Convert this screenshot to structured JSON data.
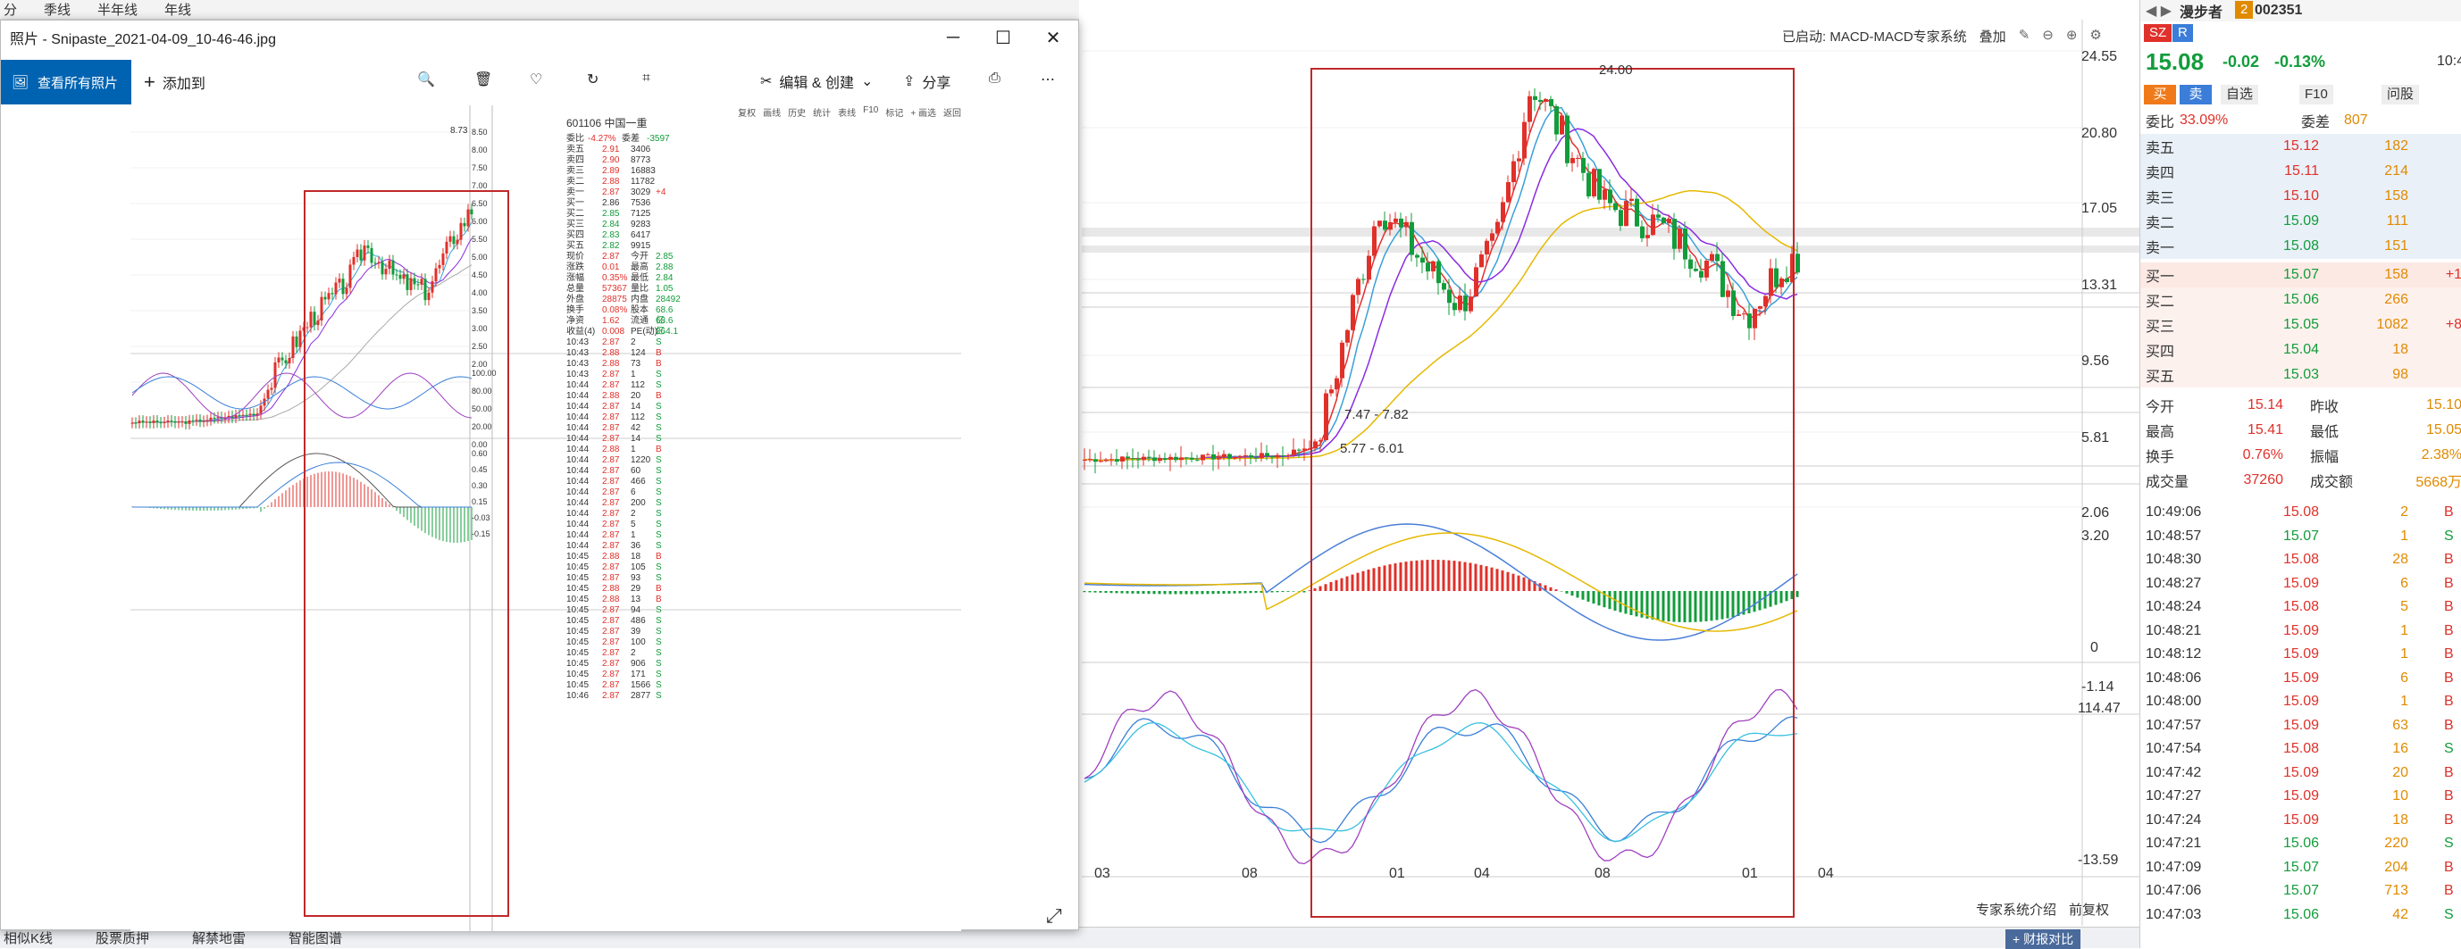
{
  "top_tabs": [
    "分",
    "季线",
    "半年线",
    "年线"
  ],
  "status_tabs": [
    "相似K线",
    "股票质押",
    "解禁地雷",
    "智能图谱"
  ],
  "photos": {
    "title": "照片 - Snipaste_2021-04-09_10-46-46.jpg",
    "see_all": "查看所有照片",
    "add_to": "添加到",
    "edit_create": "编辑 & 创建",
    "share": "分享",
    "win": {
      "minimize": "─",
      "maximize": "☐",
      "close": "✕"
    },
    "embedded": {
      "stock_title": "601106 中国一重",
      "topbar": [
        "复权",
        "画线",
        "历史",
        "统计",
        "表线",
        "F10",
        "标记",
        "+ 画选",
        "返回"
      ],
      "price_axis": [
        "8.50",
        "8.00",
        "7.50",
        "7.00",
        "6.50",
        "6.00",
        "5.50",
        "5.00",
        "4.50",
        "4.00",
        "3.50",
        "3.00",
        "2.50",
        "2.00"
      ],
      "peak_label": "8.73",
      "kdj_axis": [
        "100.00",
        "80.00",
        "50.00",
        "20.00",
        "0.00"
      ],
      "macd_axis": [
        "0.60",
        "0.45",
        "0.30",
        "0.15",
        "-0.03",
        "-0.15"
      ],
      "webi": {
        "label": "委比",
        "val": "-4.27%",
        "label2": "委差",
        "val2": "-3597"
      },
      "sell": [
        [
          "卖五",
          "2.91",
          "3406",
          ""
        ],
        [
          "卖四",
          "2.90",
          "8773",
          ""
        ],
        [
          "卖三",
          "2.89",
          "16883",
          ""
        ],
        [
          "卖二",
          "2.88",
          "11782",
          ""
        ],
        [
          "卖一",
          "2.87",
          "3029",
          "+4"
        ]
      ],
      "buy": [
        [
          "买一",
          "2.86",
          "7536",
          ""
        ],
        [
          "买二",
          "2.85",
          "7125",
          ""
        ],
        [
          "买三",
          "2.84",
          "9283",
          ""
        ],
        [
          "买四",
          "2.83",
          "6417",
          ""
        ],
        [
          "买五",
          "2.82",
          "9915",
          ""
        ]
      ],
      "stats": [
        [
          "现价",
          "2.87",
          "今开",
          "2.85"
        ],
        [
          "涨跌",
          "0.01",
          "最高",
          "2.88"
        ],
        [
          "涨幅",
          "0.35%",
          "最低",
          "2.84"
        ],
        [
          "总量",
          "57367",
          "量比",
          "1.05"
        ],
        [
          "外盘",
          "28875",
          "内盘",
          "28492"
        ],
        [
          "换手",
          "0.08%",
          "股本",
          "68.6亿"
        ],
        [
          "净资",
          "1.62",
          "流通",
          "68.6亿"
        ],
        [
          "收益(4)",
          "0.008",
          "PE(动)",
          "264.1"
        ]
      ],
      "ticks": [
        [
          "10:43",
          "2.87",
          "2",
          "S"
        ],
        [
          "10:43",
          "2.88",
          "124",
          "B"
        ],
        [
          "10:43",
          "2.88",
          "73",
          "B"
        ],
        [
          "10:43",
          "2.87",
          "1",
          "S"
        ],
        [
          "10:44",
          "2.87",
          "112",
          "S"
        ],
        [
          "10:44",
          "2.88",
          "20",
          "B"
        ],
        [
          "10:44",
          "2.87",
          "14",
          "S"
        ],
        [
          "10:44",
          "2.87",
          "112",
          "S"
        ],
        [
          "10:44",
          "2.87",
          "42",
          "S"
        ],
        [
          "10:44",
          "2.87",
          "14",
          "S"
        ],
        [
          "10:44",
          "2.88",
          "1",
          "B"
        ],
        [
          "10:44",
          "2.87",
          "1220",
          "S"
        ],
        [
          "10:44",
          "2.87",
          "60",
          "S"
        ],
        [
          "10:44",
          "2.87",
          "466",
          "S"
        ],
        [
          "10:44",
          "2.87",
          "6",
          "S"
        ],
        [
          "10:44",
          "2.87",
          "200",
          "S"
        ],
        [
          "10:44",
          "2.87",
          "2",
          "S"
        ],
        [
          "10:44",
          "2.87",
          "5",
          "S"
        ],
        [
          "10:44",
          "2.87",
          "1",
          "S"
        ],
        [
          "10:44",
          "2.87",
          "36",
          "S"
        ],
        [
          "10:45",
          "2.88",
          "18",
          "B"
        ],
        [
          "10:45",
          "2.87",
          "105",
          "S"
        ],
        [
          "10:45",
          "2.87",
          "93",
          "S"
        ],
        [
          "10:45",
          "2.88",
          "29",
          "B"
        ],
        [
          "10:45",
          "2.88",
          "13",
          "B"
        ],
        [
          "10:45",
          "2.87",
          "94",
          "S"
        ],
        [
          "10:45",
          "2.87",
          "486",
          "S"
        ],
        [
          "10:45",
          "2.87",
          "39",
          "S"
        ],
        [
          "10:45",
          "2.87",
          "100",
          "S"
        ],
        [
          "10:45",
          "2.87",
          "2",
          "S"
        ],
        [
          "10:45",
          "2.87",
          "906",
          "S"
        ],
        [
          "10:45",
          "2.87",
          "171",
          "S"
        ],
        [
          "10:45",
          "2.87",
          "1566",
          "S"
        ],
        [
          "10:46",
          "2.87",
          "2877",
          "S"
        ]
      ]
    }
  },
  "main_chart": {
    "header": "已启动: MACD-MACD专家系统",
    "overlay": "叠加",
    "price_axis": [
      "24.55",
      "20.80",
      "17.05",
      "13.31",
      "9.56",
      "5.81",
      "2.06"
    ],
    "macd_axis": [
      "3.20",
      "0",
      "-1.14"
    ],
    "kdj_axis": [
      "114.47",
      "-13.59"
    ],
    "x_axis": [
      "03",
      "08",
      "01",
      "04",
      "08",
      "01",
      "04"
    ],
    "peak_label": "24.00",
    "zone1": "7.47 - 7.82",
    "zone2": "5.77 - 6.01",
    "bottom_right": [
      "专家系统介绍",
      "前复权"
    ],
    "compare_btn": "+ 财报对比"
  },
  "stock": {
    "name": "漫步者",
    "badge": "2",
    "code": "002351",
    "tags": [
      "SZ",
      "R"
    ],
    "price": "15.08",
    "change": "-0.02",
    "pct": "-0.13%",
    "time": "10:4",
    "buttons": [
      "买",
      "卖",
      "自选",
      "F10",
      "问股"
    ],
    "webi": "委比",
    "webi_val": "33.09%",
    "weicha": "委差",
    "weicha_val": "807",
    "sell": [
      [
        "卖五",
        "15.12",
        "182",
        ""
      ],
      [
        "卖四",
        "15.11",
        "214",
        ""
      ],
      [
        "卖三",
        "15.10",
        "158",
        ""
      ],
      [
        "卖二",
        "15.09",
        "111",
        ""
      ],
      [
        "卖一",
        "15.08",
        "151",
        ""
      ]
    ],
    "buy": [
      [
        "买一",
        "15.07",
        "158",
        "+1"
      ],
      [
        "买二",
        "15.06",
        "266",
        ""
      ],
      [
        "买三",
        "15.05",
        "1082",
        "+8"
      ],
      [
        "买四",
        "15.04",
        "18",
        ""
      ],
      [
        "买五",
        "15.03",
        "98",
        ""
      ]
    ],
    "stats": [
      [
        "今开",
        "15.14",
        "昨收",
        "15.10"
      ],
      [
        "最高",
        "15.41",
        "最低",
        "15.05"
      ],
      [
        "换手",
        "0.76%",
        "振幅",
        "2.38%"
      ],
      [
        "成交量",
        "37260",
        "成交额",
        "5668万"
      ]
    ],
    "ticks": [
      [
        "10:49:06",
        "15.08",
        "2",
        "B"
      ],
      [
        "10:48:57",
        "15.07",
        "1",
        "S"
      ],
      [
        "10:48:30",
        "15.08",
        "28",
        "B"
      ],
      [
        "10:48:27",
        "15.09",
        "6",
        "B"
      ],
      [
        "10:48:24",
        "15.08",
        "5",
        "B"
      ],
      [
        "10:48:21",
        "15.09",
        "1",
        "B"
      ],
      [
        "10:48:12",
        "15.09",
        "1",
        "B"
      ],
      [
        "10:48:06",
        "15.09",
        "6",
        "B"
      ],
      [
        "10:48:00",
        "15.09",
        "1",
        "B"
      ],
      [
        "10:47:57",
        "15.09",
        "63",
        "B"
      ],
      [
        "10:47:54",
        "15.08",
        "16",
        "S"
      ],
      [
        "10:47:42",
        "15.09",
        "20",
        "B"
      ],
      [
        "10:47:27",
        "15.09",
        "10",
        "B"
      ],
      [
        "10:47:24",
        "15.09",
        "18",
        "B"
      ],
      [
        "10:47:21",
        "15.06",
        "220",
        "S"
      ],
      [
        "10:47:09",
        "15.07",
        "204",
        "B"
      ],
      [
        "10:47:06",
        "15.07",
        "713",
        "B"
      ],
      [
        "10:47:03",
        "15.06",
        "42",
        "S"
      ]
    ]
  },
  "colors": {
    "up": "#e0302a",
    "down": "#129c3b",
    "ma_yellow": "#e6b800",
    "ma_purple": "#8a2be2",
    "ma_blue": "#3aa0d8",
    "box": "#c0282a"
  }
}
